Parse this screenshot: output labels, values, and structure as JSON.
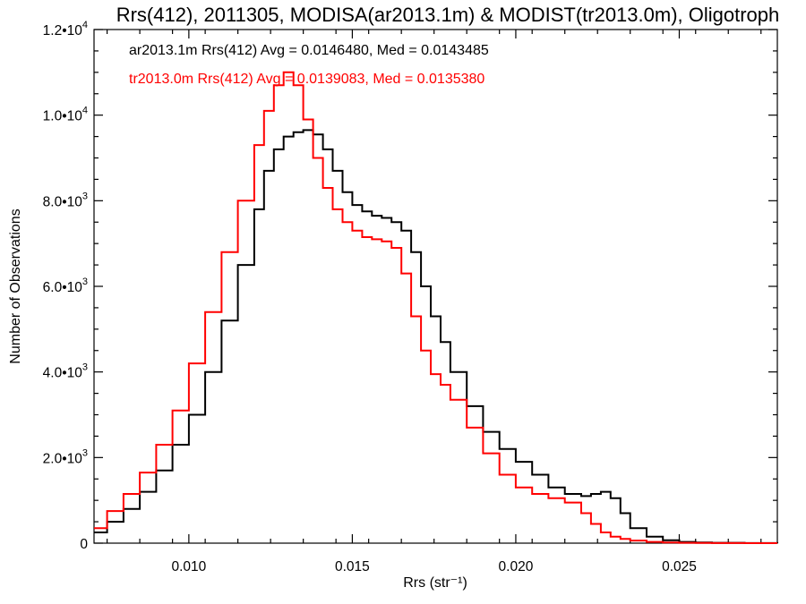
{
  "chart_data": {
    "type": "line",
    "title": "Rrs(412), 2011305, MODISA(ar2013.1m) & MODIST(tr2013.0m), Oligotroph",
    "xlabel": "Rrs (str⁻¹)",
    "ylabel": "Number of Observations",
    "xlim": [
      0.0071,
      0.028
    ],
    "ylim": [
      0,
      12000
    ],
    "xticks": [
      0.01,
      0.015,
      0.02,
      0.025
    ],
    "xtick_labels": [
      "0.010",
      "0.015",
      "0.020",
      "0.025"
    ],
    "yticks": [
      0,
      2000,
      4000,
      6000,
      8000,
      10000,
      12000
    ],
    "ytick_labels": [
      {
        "mant": "0",
        "exp": ""
      },
      {
        "mant": "2.0•10",
        "exp": "3"
      },
      {
        "mant": "4.0•10",
        "exp": "3"
      },
      {
        "mant": "6.0•10",
        "exp": "3"
      },
      {
        "mant": "8.0•10",
        "exp": "3"
      },
      {
        "mant": "1.0•10",
        "exp": "4"
      },
      {
        "mant": "1.2•10",
        "exp": "4"
      }
    ],
    "annotations": [
      {
        "text": "ar2013.1m Rrs(412) Avg = 0.0146480, Med = 0.0143485",
        "color": "#000000"
      },
      {
        "text": "tr2013.0m Rrs(412) Avg = 0.0139083, Med = 0.0135380",
        "color": "#ff0000"
      }
    ],
    "series": [
      {
        "label": "ar2013.1m",
        "color": "#000000",
        "x": [
          0.0071,
          0.0075,
          0.008,
          0.0085,
          0.009,
          0.0095,
          0.01,
          0.0105,
          0.011,
          0.0115,
          0.012,
          0.0123,
          0.0126,
          0.0129,
          0.0132,
          0.0135,
          0.0138,
          0.0141,
          0.0144,
          0.0147,
          0.015,
          0.0153,
          0.0156,
          0.0159,
          0.0162,
          0.0165,
          0.0168,
          0.0171,
          0.0174,
          0.0177,
          0.018,
          0.0185,
          0.019,
          0.0195,
          0.02,
          0.0205,
          0.021,
          0.0215,
          0.022,
          0.0223,
          0.0226,
          0.0229,
          0.0232,
          0.0235,
          0.024,
          0.0245,
          0.025,
          0.0255,
          0.026,
          0.027,
          0.028
        ],
        "values": [
          250,
          500,
          800,
          1200,
          1700,
          2300,
          3000,
          4000,
          5200,
          6500,
          7800,
          8700,
          9200,
          9500,
          9600,
          9650,
          9550,
          9200,
          8700,
          8200,
          7900,
          7750,
          7650,
          7600,
          7500,
          7300,
          6800,
          6000,
          5300,
          4700,
          4000,
          3200,
          2600,
          2200,
          1900,
          1600,
          1300,
          1150,
          1100,
          1150,
          1200,
          1050,
          700,
          350,
          150,
          70,
          30,
          15,
          8,
          3,
          1
        ]
      },
      {
        "label": "tr2013.0m",
        "color": "#ff0000",
        "x": [
          0.0071,
          0.0075,
          0.008,
          0.0085,
          0.009,
          0.0095,
          0.01,
          0.0105,
          0.011,
          0.0115,
          0.012,
          0.0123,
          0.0126,
          0.0129,
          0.0132,
          0.0135,
          0.0138,
          0.0141,
          0.0144,
          0.0147,
          0.015,
          0.0153,
          0.0156,
          0.0159,
          0.0162,
          0.0165,
          0.0168,
          0.0171,
          0.0174,
          0.0177,
          0.018,
          0.0185,
          0.019,
          0.0195,
          0.02,
          0.0205,
          0.021,
          0.0215,
          0.022,
          0.0223,
          0.0226,
          0.0229,
          0.0232,
          0.0235,
          0.024,
          0.0245,
          0.025,
          0.0255,
          0.026,
          0.027,
          0.028
        ],
        "values": [
          350,
          750,
          1150,
          1650,
          2300,
          3100,
          4200,
          5400,
          6800,
          8000,
          9300,
          10100,
          10700,
          11000,
          10700,
          9900,
          9000,
          8300,
          7800,
          7500,
          7300,
          7150,
          7100,
          7050,
          6900,
          6300,
          5300,
          4500,
          3950,
          3700,
          3350,
          2700,
          2100,
          1600,
          1300,
          1150,
          1050,
          950,
          700,
          450,
          250,
          150,
          100,
          60,
          30,
          15,
          8,
          4,
          2,
          1,
          0
        ]
      }
    ]
  }
}
